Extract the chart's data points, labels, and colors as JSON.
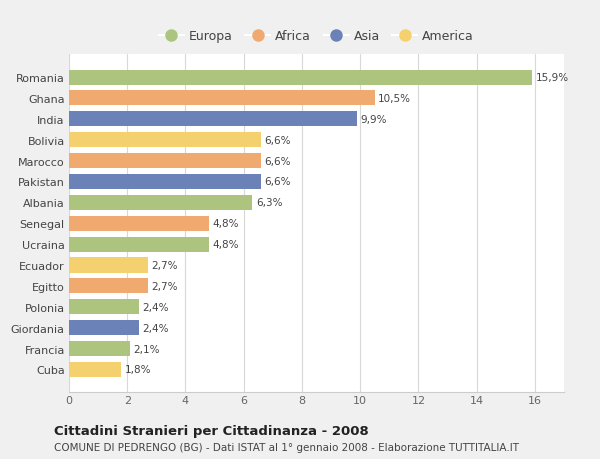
{
  "countries": [
    "Romania",
    "Ghana",
    "India",
    "Bolivia",
    "Marocco",
    "Pakistan",
    "Albania",
    "Senegal",
    "Ucraina",
    "Ecuador",
    "Egitto",
    "Polonia",
    "Giordania",
    "Francia",
    "Cuba"
  ],
  "values": [
    15.9,
    10.5,
    9.9,
    6.6,
    6.6,
    6.6,
    6.3,
    4.8,
    4.8,
    2.7,
    2.7,
    2.4,
    2.4,
    2.1,
    1.8
  ],
  "labels": [
    "15,9%",
    "10,5%",
    "9,9%",
    "6,6%",
    "6,6%",
    "6,6%",
    "6,3%",
    "4,8%",
    "4,8%",
    "2,7%",
    "2,7%",
    "2,4%",
    "2,4%",
    "2,1%",
    "1,8%"
  ],
  "continents": [
    "Europa",
    "Africa",
    "Asia",
    "America",
    "Africa",
    "Asia",
    "Europa",
    "Africa",
    "Europa",
    "America",
    "Africa",
    "Europa",
    "Asia",
    "Europa",
    "America"
  ],
  "colors": {
    "Europa": "#adc47e",
    "Africa": "#f0a96e",
    "Asia": "#6b82b8",
    "America": "#f5d06e"
  },
  "legend_order": [
    "Europa",
    "Africa",
    "Asia",
    "America"
  ],
  "xlim": [
    0,
    17
  ],
  "xticks": [
    0,
    2,
    4,
    6,
    8,
    10,
    12,
    14,
    16
  ],
  "title": "Cittadini Stranieri per Cittadinanza - 2008",
  "subtitle": "COMUNE DI PEDRENGO (BG) - Dati ISTAT al 1° gennaio 2008 - Elaborazione TUTTITALIA.IT",
  "background_color": "#f0f0f0",
  "plot_bg_color": "#ffffff",
  "title_fontsize": 9.5,
  "subtitle_fontsize": 7.5,
  "label_fontsize": 7.5,
  "tick_fontsize": 8,
  "legend_fontsize": 9
}
